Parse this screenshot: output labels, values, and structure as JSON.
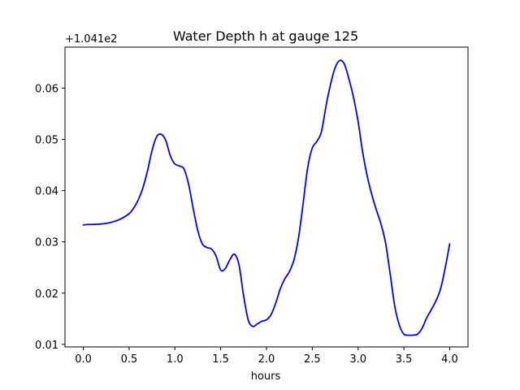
{
  "chart_data": {
    "type": "line",
    "title": "Water Depth h at gauge 125",
    "xlabel": "hours",
    "ylabel": "",
    "offset_label": "+1.041e2",
    "xlim": [
      -0.2,
      4.2
    ],
    "ylim": [
      0.0095,
      0.068
    ],
    "xticks": [
      0.0,
      0.5,
      1.0,
      1.5,
      2.0,
      2.5,
      3.0,
      3.5,
      4.0
    ],
    "xtick_labels": [
      "0.0",
      "0.5",
      "1.0",
      "1.5",
      "2.0",
      "2.5",
      "3.0",
      "3.5",
      "4.0"
    ],
    "yticks": [
      0.01,
      0.02,
      0.03,
      0.04,
      0.05,
      0.06
    ],
    "ytick_labels": [
      "0.01",
      "0.02",
      "0.03",
      "0.04",
      "0.05",
      "0.06"
    ],
    "grid": false,
    "line_color": "#0000ff",
    "series": [
      {
        "x": [
          0.0,
          0.05,
          0.1,
          0.2,
          0.3,
          0.4,
          0.5,
          0.55,
          0.6,
          0.65,
          0.7,
          0.75,
          0.8,
          0.85,
          0.9,
          0.95,
          1.0,
          1.05,
          1.1,
          1.15,
          1.2,
          1.25,
          1.3,
          1.35,
          1.4,
          1.45,
          1.5,
          1.55,
          1.6,
          1.65,
          1.7,
          1.75,
          1.8,
          1.85,
          1.9,
          1.95,
          2.0,
          2.05,
          2.1,
          2.15,
          2.2,
          2.25,
          2.3,
          2.35,
          2.4,
          2.45,
          2.5,
          2.55,
          2.6,
          2.65,
          2.7,
          2.75,
          2.8,
          2.85,
          2.9,
          2.95,
          3.0,
          3.05,
          3.1,
          3.15,
          3.2,
          3.25,
          3.3,
          3.35,
          3.4,
          3.45,
          3.5,
          3.55,
          3.6,
          3.65,
          3.7,
          3.75,
          3.8,
          3.85,
          3.9,
          3.95,
          4.0
        ],
        "y": [
          0.0333,
          0.0334,
          0.0334,
          0.0335,
          0.0338,
          0.0344,
          0.0355,
          0.0366,
          0.0382,
          0.0405,
          0.0438,
          0.0478,
          0.0505,
          0.051,
          0.0498,
          0.0468,
          0.0452,
          0.0448,
          0.0442,
          0.0412,
          0.0365,
          0.0322,
          0.0296,
          0.0289,
          0.0286,
          0.0272,
          0.0245,
          0.0248,
          0.0265,
          0.0276,
          0.0255,
          0.0195,
          0.0148,
          0.0135,
          0.014,
          0.0145,
          0.0148,
          0.0158,
          0.018,
          0.0208,
          0.0228,
          0.0242,
          0.0265,
          0.0308,
          0.0375,
          0.0445,
          0.0483,
          0.0496,
          0.0515,
          0.0565,
          0.0608,
          0.064,
          0.0654,
          0.0647,
          0.0618,
          0.0582,
          0.0535,
          0.0475,
          0.0428,
          0.0392,
          0.0362,
          0.0335,
          0.0298,
          0.0238,
          0.0175,
          0.0138,
          0.012,
          0.0118,
          0.0118,
          0.012,
          0.0132,
          0.0152,
          0.0168,
          0.0185,
          0.0208,
          0.0248,
          0.0296
        ]
      }
    ]
  }
}
